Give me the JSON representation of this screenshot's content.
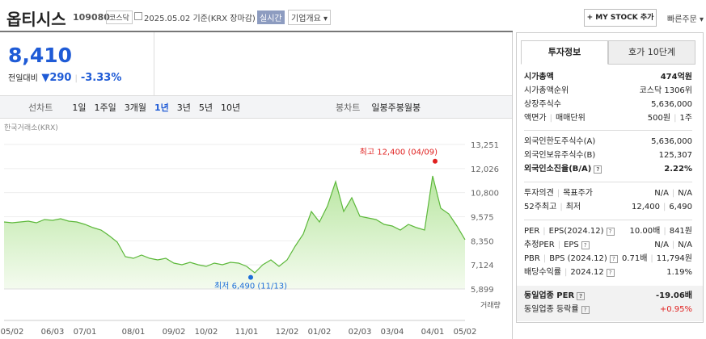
{
  "header": {
    "name": "옵티시스",
    "code": "109080",
    "market": "코스닥",
    "date": "2025.05.02",
    "basis": "기준(KRX 장마감)",
    "realtime": "실시간",
    "overview": "기업개요",
    "mystock": "+ MY STOCK 추가",
    "quick_order": "빠른주문"
  },
  "price": {
    "current": "8,410",
    "change_label": "전일대비",
    "change": "290",
    "change_pct": "-3.33%"
  },
  "period_tabs": {
    "line_label": "선차트",
    "line": [
      "1일",
      "1주일",
      "3개월",
      "1년",
      "3년",
      "5년",
      "10년"
    ],
    "active": "1년",
    "candle_label": "봉차트",
    "candle": [
      "일봉",
      "주봉",
      "월봉"
    ]
  },
  "chart_data": {
    "type": "area",
    "source": "한국거래소(KRX)",
    "color": "#5cb83a",
    "grid": true,
    "categories": [
      null,
      "05/02",
      null,
      null,
      null,
      null,
      "06/03",
      null,
      null,
      null,
      "07/01",
      null,
      null,
      null,
      null,
      null,
      "08/01",
      null,
      null,
      null,
      null,
      "09/02",
      null,
      null,
      null,
      "10/02",
      null,
      null,
      null,
      null,
      "11/01",
      null,
      null,
      null,
      null,
      "12/02",
      null,
      null,
      null,
      "01/02",
      null,
      null,
      null,
      null,
      "02/03",
      null,
      null,
      null,
      "03/04",
      null,
      null,
      null,
      null,
      "04/01",
      null,
      null,
      null,
      "05/02"
    ],
    "values": [
      9308,
      9267,
      9308,
      9350,
      9267,
      9431,
      9390,
      9472,
      9350,
      9308,
      9185,
      9021,
      8898,
      8610,
      8282,
      7542,
      7460,
      7624,
      7460,
      7378,
      7460,
      7214,
      7132,
      7255,
      7132,
      7050,
      7214,
      7132,
      7255,
      7214,
      7050,
      6721,
      7132,
      7378,
      7050,
      7378,
      8076,
      8692,
      9842,
      9308,
      10130,
      11362,
      9842,
      10540,
      9596,
      9513,
      9431,
      9185,
      9103,
      8898,
      9185,
      9021,
      8898,
      11649,
      10007,
      9719,
      9103,
      8410
    ],
    "ylim": [
      5899,
      13251
    ],
    "yticks": [
      {
        "value": 5899,
        "label": "5,899"
      },
      {
        "value": 7124,
        "label": "7,124"
      },
      {
        "value": 8350,
        "label": "8,350"
      },
      {
        "value": 9575,
        "label": "9,575"
      },
      {
        "value": 10800,
        "label": "10,800"
      },
      {
        "value": 12026,
        "label": "12,026"
      },
      {
        "value": 13251,
        "label": "13,251"
      }
    ],
    "high": {
      "value": 12400,
      "label": "최고 12,400 (04/09)",
      "color": "#e0201f"
    },
    "low": {
      "value": 6490,
      "label": "최저 6,490 (11/13)",
      "color": "#1e6fd9"
    },
    "volume_label": "거래량"
  },
  "tabs": [
    "투자정보",
    "호가 10단계"
  ],
  "info": {
    "sections": [
      {
        "rows": [
          {
            "label": [
              "시가총액"
            ],
            "value": [
              "474억원"
            ],
            "bold": true
          },
          {
            "label": [
              "시가총액순위"
            ],
            "value": [
              "코스닥 1306위"
            ]
          },
          {
            "label": [
              "상장주식수"
            ],
            "value": [
              "5,636,000"
            ]
          },
          {
            "label": [
              "액면가",
              "매매단위"
            ],
            "value": [
              "500원",
              "1주"
            ]
          }
        ]
      },
      {
        "rows": [
          {
            "label": [
              "외국인한도주식수(A)"
            ],
            "value": [
              "5,636,000"
            ]
          },
          {
            "label": [
              "외국인보유주식수(B)"
            ],
            "value": [
              "125,307"
            ]
          },
          {
            "label": [
              "외국인소진율(B/A)"
            ],
            "value": [
              "2.22%"
            ],
            "bold": true,
            "help": true
          }
        ]
      },
      {
        "rows": [
          {
            "label": [
              "투자의견",
              "목표주가"
            ],
            "value": [
              "N/A",
              "N/A"
            ]
          },
          {
            "label": [
              "52주최고",
              "최저"
            ],
            "value": [
              "12,400",
              "6,490"
            ]
          }
        ]
      },
      {
        "rows": [
          {
            "label": [
              "PER",
              "EPS(2024.12)"
            ],
            "value": [
              "10.00배",
              "841원"
            ],
            "help": true
          },
          {
            "label": [
              "추정PER",
              "EPS"
            ],
            "value": [
              "N/A",
              "N/A"
            ],
            "help": true
          },
          {
            "label": [
              "PBR",
              "BPS (2024.12)"
            ],
            "value": [
              "0.71배",
              "11,794원"
            ],
            "help": true
          },
          {
            "label": [
              "배당수익률",
              "2024.12"
            ],
            "value": [
              "1.19%"
            ],
            "help": true
          }
        ]
      },
      {
        "rows": [
          {
            "label": [
              "동일업종 PER"
            ],
            "value": [
              "-19.06배"
            ],
            "bold": true,
            "help": true
          },
          {
            "label": [
              "동일업종 등락률"
            ],
            "value": [
              "+0.95%"
            ],
            "help": true,
            "value_color": "#e0201f"
          }
        ],
        "shaded": true
      }
    ]
  }
}
